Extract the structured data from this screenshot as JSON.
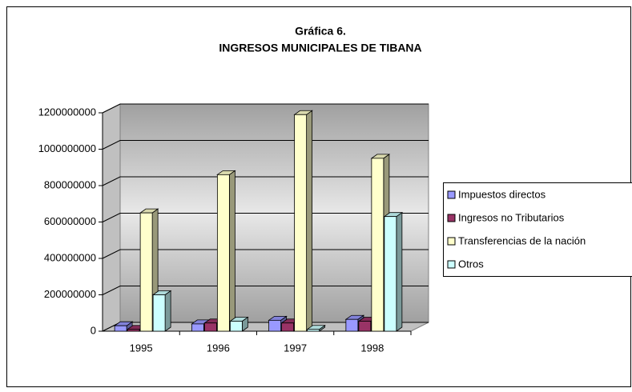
{
  "chart_data": {
    "type": "bar3d",
    "title": "Gráfica 6.",
    "subtitle": "INGRESOS MUNICIPALES DE TIBANA",
    "categories": [
      "1995",
      "1996",
      "1997",
      "1998"
    ],
    "series": [
      {
        "name": "Impuestos directos",
        "color": "#9999ff",
        "values": [
          30000000,
          40000000,
          60000000,
          65000000
        ]
      },
      {
        "name": "Ingresos no Tributarios",
        "color": "#993366",
        "values": [
          10000000,
          45000000,
          45000000,
          55000000
        ]
      },
      {
        "name": "Transferencias de la nación",
        "color": "#ffffcc",
        "values": [
          650000000,
          860000000,
          1190000000,
          950000000
        ]
      },
      {
        "name": "Otros",
        "color": "#ccffff",
        "values": [
          200000000,
          55000000,
          10000000,
          630000000
        ]
      }
    ],
    "ylim": [
      0,
      1200000000
    ],
    "yticks": [
      0,
      200000000,
      400000000,
      600000000,
      800000000,
      1000000000,
      1200000000
    ],
    "grid": true,
    "legend": "right"
  }
}
